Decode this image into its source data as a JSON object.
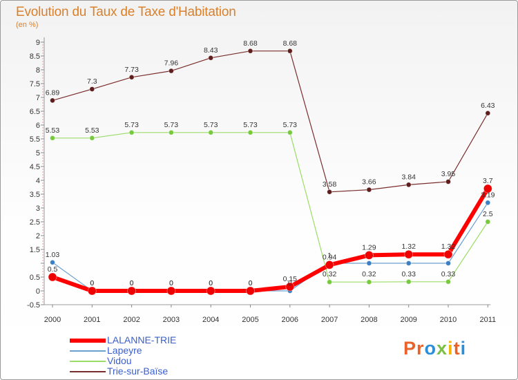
{
  "title": "Evolution du Taux de Taxe d'Habitation",
  "subtitle": "(en %)",
  "brand": "Proxiti",
  "chart_data": {
    "type": "line",
    "title": "Evolution du Taux de Taxe d'Habitation",
    "ylabel": "(en %)",
    "xlabel": "",
    "categories": [
      "2000",
      "2001",
      "2002",
      "2003",
      "2004",
      "2005",
      "2006",
      "2007",
      "2008",
      "2009",
      "2010",
      "2011"
    ],
    "ylim": [
      -0.5,
      9
    ],
    "yticks": [
      -0.5,
      0,
      0.5,
      1,
      1.5,
      2,
      2.5,
      3,
      3.5,
      4,
      4.5,
      5,
      5.5,
      6,
      6.5,
      7,
      7.5,
      8,
      8.5,
      9
    ],
    "ytick_labels": [
      "-0.5",
      "0",
      "0.5",
      "",
      "1.5",
      "2",
      "2.5",
      "3",
      "3.5",
      "4",
      "4.5",
      "5",
      "5.5",
      "6",
      "6.5",
      "7",
      "7.5",
      "8",
      "8.5",
      "9"
    ],
    "grid": false,
    "series": [
      {
        "name": "Trie-sur-Baïse",
        "color": "#7a2d2d",
        "marker": "#5e1e1e",
        "width": 1.2,
        "r": 3.5,
        "values": [
          6.89,
          7.3,
          7.73,
          7.96,
          8.43,
          8.68,
          8.68,
          3.58,
          3.66,
          3.84,
          3.95,
          6.43
        ],
        "labels": [
          "6.89",
          "7.3",
          "7.73",
          "7.96",
          "8.43",
          "8.68",
          "8.68",
          "3.58",
          "3.66",
          "3.84",
          "3.95",
          "6.43"
        ]
      },
      {
        "name": "Vidou",
        "color": "#99dd66",
        "marker": "#77c93d",
        "width": 1.2,
        "r": 3.5,
        "values": [
          5.53,
          5.53,
          5.73,
          5.73,
          5.73,
          5.73,
          5.73,
          0.32,
          0.32,
          0.33,
          0.33,
          2.5
        ],
        "labels": [
          "5.53",
          "5.53",
          "5.73",
          "5.73",
          "5.73",
          "5.73",
          "5.73",
          "0.32",
          "0.32",
          "0.33",
          "0.33",
          "2.5"
        ]
      },
      {
        "name": "Lapeyre",
        "color": "#6a9fce",
        "marker": "#3c7fc3",
        "width": 1.2,
        "r": 3.5,
        "values": [
          1.03,
          0,
          0,
          0,
          0,
          0,
          0,
          1,
          1,
          1,
          1,
          3.19
        ],
        "labels": [
          "1.03",
          "0",
          "0",
          "0",
          "0",
          "0",
          "0",
          "1",
          "",
          "",
          "",
          "3.19"
        ]
      },
      {
        "name": "LALANNE-TRIE",
        "color": "#ff0000",
        "marker": "#ee0000",
        "width": 6,
        "r": 6,
        "values": [
          0.5,
          0,
          0,
          0,
          0,
          0,
          0.15,
          0.94,
          1.29,
          1.32,
          1.32,
          3.7
        ],
        "labels": [
          "0.5",
          "0",
          "0",
          "0",
          "0",
          "0",
          "0.15",
          "0.94",
          "1.29",
          "1.32",
          "1.32",
          "3.7"
        ]
      }
    ]
  },
  "legend": [
    "LALANNE-TRIE",
    "Lapeyre",
    "Vidou",
    "Trie-sur-Baïse"
  ]
}
